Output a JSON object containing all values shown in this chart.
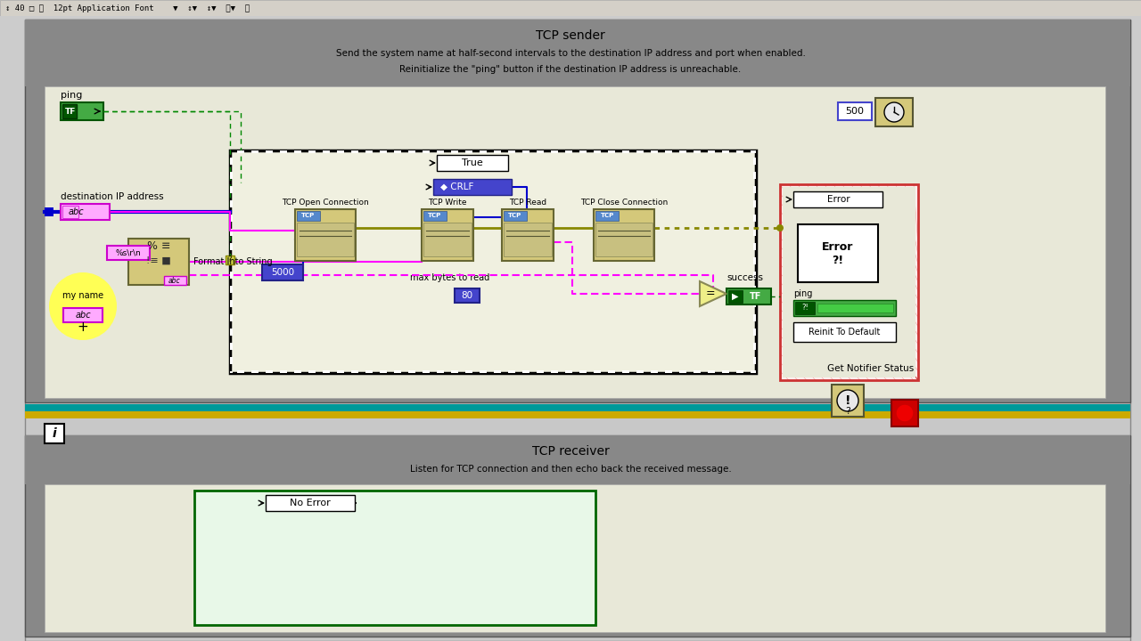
{
  "toolbar_bg": "#d4d0c8",
  "panel_gray": "#888888",
  "inner_bg": "#e8e8d8",
  "loop_bg": "#f0f0e0",
  "title_sender": "TCP sender",
  "subtitle_line1": "Send the system name at half-second intervals to the destination IP address and port when enabled.",
  "subtitle_line2": "Reinitialize the \"ping\" button if the destination IP address is unreachable.",
  "title_receiver": "TCP receiver",
  "subtitle_receiver": "Listen for TCP connection and then echo back the received message.",
  "wire_pink": "#ff00ff",
  "wire_blue": "#0000cc",
  "wire_olive": "#888800",
  "wire_green_dark": "#006600",
  "wire_green": "#008800",
  "box_yellow": "#d4c87a",
  "box_blue": "#4444cc",
  "box_green": "#44aa44",
  "teal": "#009999",
  "gold": "#ccaa00"
}
